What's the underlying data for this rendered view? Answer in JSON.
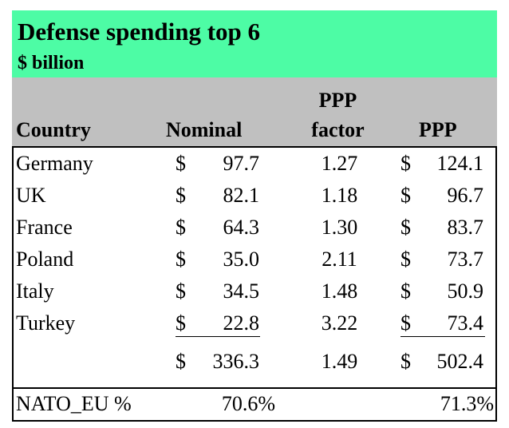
{
  "title": "Defense spending top 6",
  "subtitle": "$ billion",
  "colors": {
    "title_band": "#4dfca5",
    "header_band": "#c0c0c0"
  },
  "headers": {
    "country": "Country",
    "nominal": "Nominal",
    "ppp_factor_line1": "PPP",
    "ppp_factor_line2": "factor",
    "ppp": "PPP"
  },
  "rows": [
    {
      "country": "Germany",
      "nominal_currency": "$",
      "nominal": "97.7",
      "factor": "1.27",
      "ppp_currency": "$",
      "ppp": "124.1"
    },
    {
      "country": "UK",
      "nominal_currency": "$",
      "nominal": "82.1",
      "factor": "1.18",
      "ppp_currency": "$",
      "ppp": "96.7"
    },
    {
      "country": "France",
      "nominal_currency": "$",
      "nominal": "64.3",
      "factor": "1.30",
      "ppp_currency": "$",
      "ppp": "83.7"
    },
    {
      "country": "Poland",
      "nominal_currency": "$",
      "nominal": "35.0",
      "factor": "2.11",
      "ppp_currency": "$",
      "ppp": "73.7"
    },
    {
      "country": "Italy",
      "nominal_currency": "$",
      "nominal": "34.5",
      "factor": "1.48",
      "ppp_currency": "$",
      "ppp": "50.9"
    },
    {
      "country": "Turkey",
      "nominal_currency": "$",
      "nominal": "22.8",
      "factor": "3.22",
      "ppp_currency": "$",
      "ppp": "73.4"
    }
  ],
  "total": {
    "nominal_currency": "$",
    "nominal": "336.3",
    "factor": "1.49",
    "ppp_currency": "$",
    "ppp": "502.4"
  },
  "nato": {
    "label": "NATO_EU %",
    "nominal": "70.6%",
    "ppp": "71.3%"
  }
}
